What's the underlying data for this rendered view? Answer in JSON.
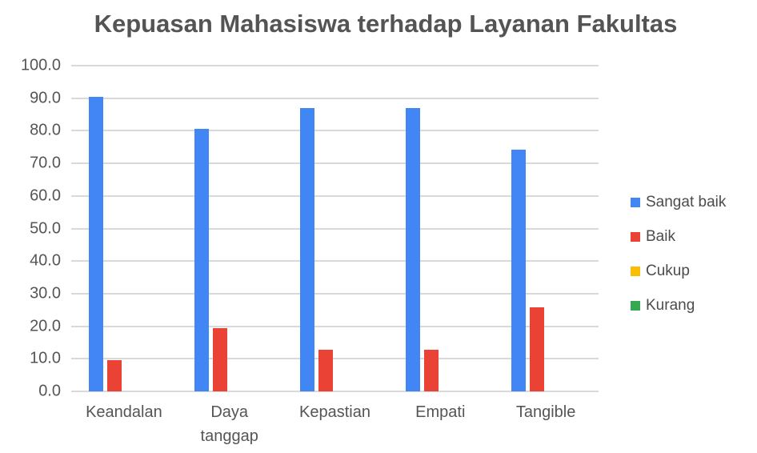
{
  "chart_data": {
    "type": "bar",
    "title": "Kepuasan Mahasiswa terhadap Layanan Fakultas",
    "categories": [
      "Keandalan",
      "Daya tanggap",
      "Kepastian",
      "Empati",
      "Tangible"
    ],
    "series": [
      {
        "name": "Sangat baik",
        "color": "#4285F4",
        "values": [
          90.3,
          80.6,
          87.1,
          87.1,
          74.2
        ]
      },
      {
        "name": "Baik",
        "color": "#EA4335",
        "values": [
          9.7,
          19.4,
          12.9,
          12.9,
          25.8
        ]
      },
      {
        "name": "Cukup",
        "color": "#FBBC04",
        "values": [
          0,
          0,
          0,
          0,
          0
        ]
      },
      {
        "name": "Kurang",
        "color": "#34A853",
        "values": [
          0,
          0,
          0,
          0,
          0
        ]
      }
    ],
    "xlabel": "",
    "ylabel": "",
    "ylim": [
      0,
      100
    ],
    "ytick_step": 10,
    "ytick_labels": [
      "0.0",
      "10.0",
      "20.0",
      "30.0",
      "40.0",
      "50.0",
      "60.0",
      "70.0",
      "80.0",
      "90.0",
      "100.0"
    ],
    "grid": true,
    "grid_color": "#d9d9d9",
    "legend_position": "right"
  }
}
